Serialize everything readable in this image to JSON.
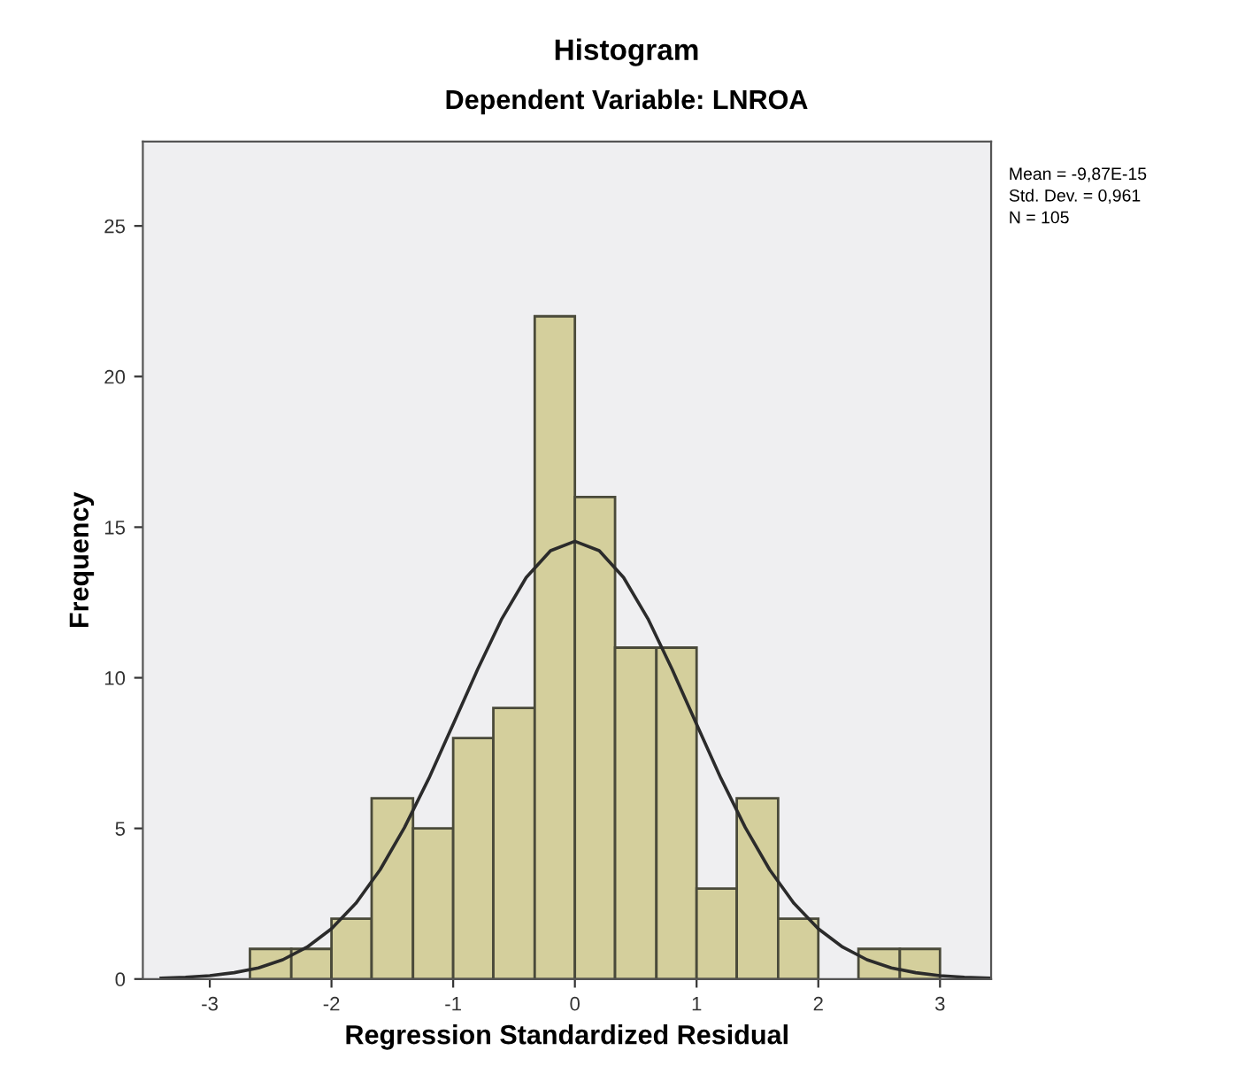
{
  "chart_data": {
    "type": "histogram",
    "title": "Histogram",
    "subtitle": "Dependent Variable: LNROA",
    "xlabel": "Regression Standardized Residual",
    "ylabel": "Frequency",
    "bins": [
      -2.67,
      -2.33,
      -2.0,
      -1.67,
      -1.33,
      -1.0,
      -0.67,
      -0.33,
      0.0,
      0.33,
      0.67,
      1.0,
      1.33,
      1.67,
      2.0,
      2.33,
      2.67,
      3.0
    ],
    "values": [
      1,
      1,
      2,
      6,
      5,
      8,
      9,
      22,
      16,
      11,
      11,
      3,
      6,
      2,
      0,
      1,
      1
    ],
    "color": "#d4cf9c",
    "series": [
      {
        "type": "line",
        "color": "#2b2b2b",
        "x": [
          -3.4,
          -3.2,
          -3.0,
          -2.8,
          -2.6,
          -2.4,
          -2.2,
          -2.0,
          -1.8,
          -1.6,
          -1.4,
          -1.2,
          -1.0,
          -0.8,
          -0.6,
          -0.4,
          -0.2,
          0.0,
          0.2,
          0.4,
          0.6,
          0.8,
          1.0,
          1.2,
          1.4,
          1.6,
          1.8,
          2.0,
          2.2,
          2.4,
          2.6,
          2.8,
          3.0,
          3.2,
          3.4
        ],
        "values": [
          0.03,
          0.06,
          0.11,
          0.21,
          0.37,
          0.64,
          1.06,
          1.67,
          2.51,
          3.63,
          5.03,
          6.66,
          8.46,
          10.27,
          11.96,
          13.33,
          14.22,
          14.53,
          14.22,
          13.33,
          11.96,
          10.27,
          8.46,
          6.66,
          5.03,
          3.63,
          2.51,
          1.67,
          1.06,
          0.64,
          0.37,
          0.21,
          0.11,
          0.06,
          0.03
        ]
      }
    ],
    "xlim": [
      -3.55,
      3.42
    ],
    "ylim": [
      0,
      27.8
    ],
    "xticks": [
      -3,
      -2,
      -1,
      0,
      1,
      2,
      3
    ],
    "yticks": [
      0,
      5,
      10,
      15,
      20,
      25
    ],
    "grid": false,
    "annotations": [
      "Mean = -9,87E-15",
      "Std. Dev. = 0,961",
      "N = 105"
    ]
  }
}
